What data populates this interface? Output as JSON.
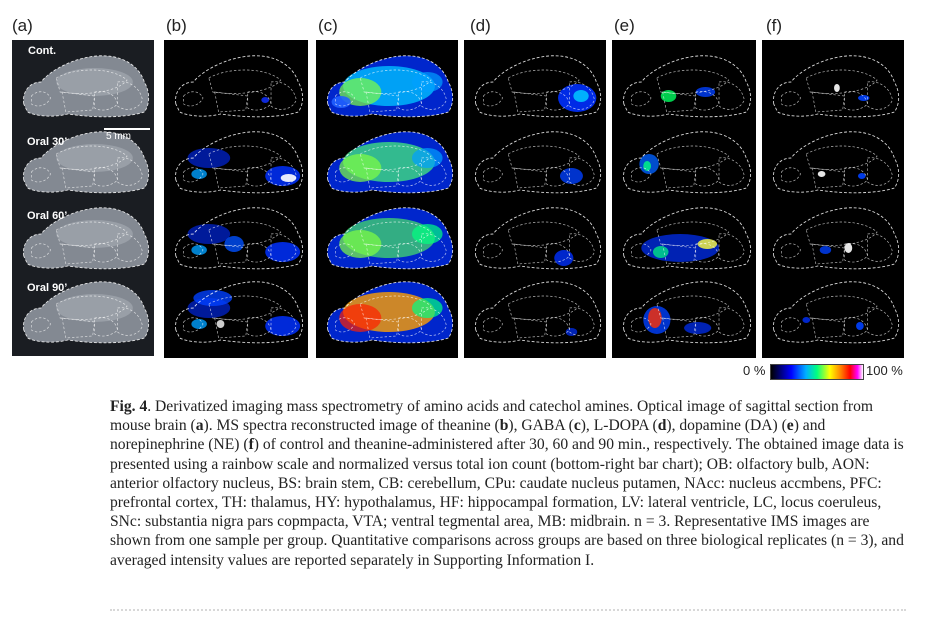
{
  "panels": {
    "a": "(a)",
    "b": "(b)",
    "c": "(c)",
    "d": "(d)",
    "e": "(e)",
    "f": "(f)"
  },
  "rows": [
    "Cont.",
    "Oral 30’",
    "Oral 60’",
    "Oral 90’"
  ],
  "scale_bar": "5 mm",
  "color_scale": {
    "min": "0 %",
    "max": "100 %"
  },
  "caption": {
    "fig_num": "Fig. 4",
    "t1": ".  Derivatized imaging mass spectrometry of amino acids and catechol amines. Optical image of sagittal section from mouse brain (",
    "a": "a",
    "t2": "). MS spectra reconstructed image of theanine (",
    "b": "b",
    "t3": "), GABA (",
    "c": "c",
    "t4": "), L-DOPA (",
    "d": "d",
    "t5": "), dopamine (DA) (",
    "e": "e",
    "t6": ") and norepinephrine (NE) (",
    "f": "f",
    "t7": ") of control and theanine-administered after 30, 60 and 90 min., respectively. The obtained image data is presented using a rainbow scale and normalized versus total ion count (bottom-right bar chart); OB: olfactory bulb, AON: anterior olfactory nucleus, BS: brain stem, CB: cerebellum, CPu: caudate nucleus putamen, NAcc: nucleus accmbens, PFC: prefrontal cortex, TH: thalamus, HY: hypothalamus, HF: hippocampal formation, LV: lateral ventricle, LC, locus coeruleus, SNc: substantia nigra pars copmpacta, VTA; ventral tegmental area, MB: midbrain. n = 3. Representative IMS images are shown from one sample per group. Quantitative comparisons across groups are based on three biological replicates (n = 3), and averaged intensity values are reported separately in Supporting Information I."
  }
}
